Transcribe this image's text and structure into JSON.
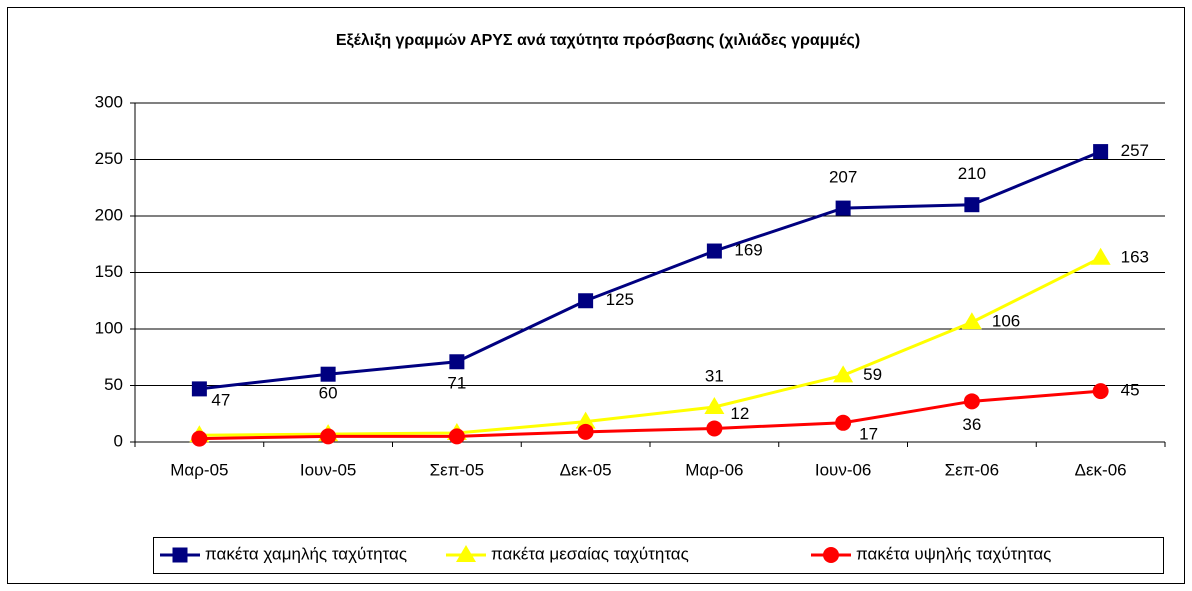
{
  "chart_data": {
    "type": "line",
    "title": "Εξέλιξη γραμμών ΑΡΥΣ ανά ταχύτητα πρόσβασης (χιλιάδες γραμμές)",
    "categories": [
      "Μαρ-05",
      "Ιουν-05",
      "Σεπ-05",
      "Δεκ-05",
      "Μαρ-06",
      "Ιουν-06",
      "Σεπ-06",
      "Δεκ-06"
    ],
    "series": [
      {
        "name": "πακέτα χαμηλής ταχύτητας",
        "color": "#000080",
        "marker": "square",
        "values": [
          47,
          60,
          71,
          125,
          169,
          207,
          210,
          257
        ],
        "value_labels": [
          "47",
          "60",
          "71",
          "125",
          "169",
          "207",
          "210",
          "257"
        ]
      },
      {
        "name": "πακέτα μεσαίας ταχύτητας",
        "color": "#ffff00",
        "marker": "triangle",
        "values": [
          6,
          7,
          8,
          18,
          31,
          59,
          106,
          163
        ],
        "value_labels": [
          null,
          null,
          null,
          null,
          "31",
          "59",
          "106",
          "163"
        ]
      },
      {
        "name": "πακέτα υψηλής ταχύτητας",
        "color": "#ff0000",
        "marker": "circle",
        "values": [
          3,
          5,
          5,
          9,
          12,
          17,
          36,
          45
        ],
        "value_labels": [
          null,
          null,
          null,
          null,
          "12",
          "17",
          "36",
          "45"
        ]
      }
    ],
    "ylim": [
      0,
      300
    ],
    "yticks": [
      0,
      50,
      100,
      150,
      200,
      250,
      300
    ],
    "grid": true,
    "legend": "bottom"
  }
}
